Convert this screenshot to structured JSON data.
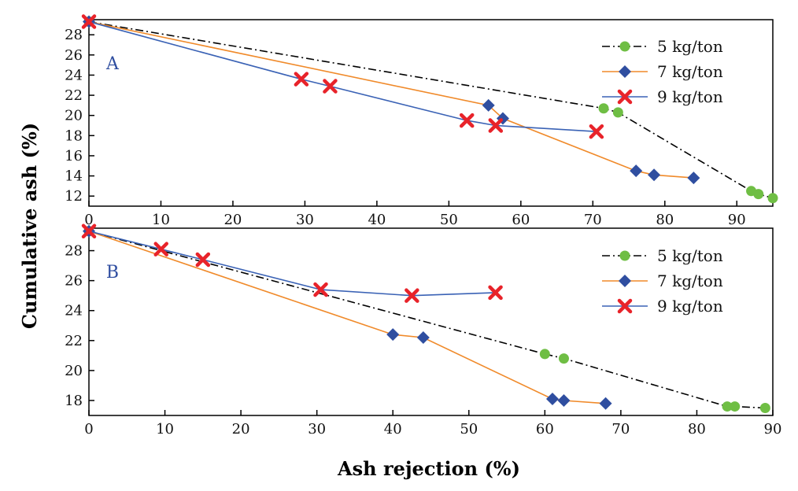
{
  "figure": {
    "xlabel": "Ash rejection (%)",
    "ylabel": "Cumulative ash (%)"
  },
  "colors": {
    "5 kg/ton": "#6fbe44",
    "7 kg/ton": "#2f4ea0",
    "9 kg/ton": "#e8232a",
    "line_5": "#000000",
    "line_7": "#f08a2a",
    "line_9": "#3a62b5"
  },
  "chart_data": [
    {
      "type": "line",
      "panel": "A",
      "xlim": [
        0,
        95
      ],
      "ylim": [
        11,
        29.5
      ],
      "xticks": [
        0,
        10,
        20,
        30,
        40,
        50,
        60,
        70,
        80,
        90
      ],
      "yticks": [
        12,
        14,
        16,
        18,
        20,
        22,
        24,
        26,
        28
      ],
      "legend": "top-right",
      "grid": false,
      "series": [
        {
          "name": "5 kg/ton",
          "x": [
            0,
            71.5,
            73.5,
            92,
            93,
            95
          ],
          "y": [
            29.3,
            20.7,
            20.3,
            12.5,
            12.2,
            11.8
          ]
        },
        {
          "name": "7 kg/ton",
          "x": [
            0,
            55.5,
            57.5,
            76,
            78.5,
            84
          ],
          "y": [
            29.3,
            21.0,
            19.7,
            14.5,
            14.1,
            13.8
          ]
        },
        {
          "name": "9 kg/ton",
          "x": [
            0,
            29.5,
            33.5,
            52.5,
            56.5,
            70.5
          ],
          "y": [
            29.3,
            23.6,
            22.9,
            19.5,
            19.0,
            18.4
          ]
        }
      ]
    },
    {
      "type": "line",
      "panel": "B",
      "xlim": [
        0,
        90
      ],
      "ylim": [
        17,
        29.5
      ],
      "xticks": [
        0,
        10,
        20,
        30,
        40,
        50,
        60,
        70,
        80,
        90
      ],
      "yticks": [
        18,
        20,
        22,
        24,
        26,
        28
      ],
      "legend": "top-right",
      "grid": false,
      "series": [
        {
          "name": "5 kg/ton",
          "x": [
            0,
            60,
            62.5,
            84,
            85,
            89
          ],
          "y": [
            29.3,
            21.1,
            20.8,
            17.6,
            17.6,
            17.5
          ]
        },
        {
          "name": "7 kg/ton",
          "x": [
            0,
            40,
            44,
            61,
            62.5,
            68
          ],
          "y": [
            29.3,
            22.4,
            22.2,
            18.1,
            18.0,
            17.8
          ]
        },
        {
          "name": "9 kg/ton",
          "x": [
            0,
            9.5,
            15,
            30.5,
            42.5,
            53.5
          ],
          "y": [
            29.3,
            28.1,
            27.4,
            25.4,
            25.0,
            25.2
          ]
        }
      ]
    }
  ]
}
